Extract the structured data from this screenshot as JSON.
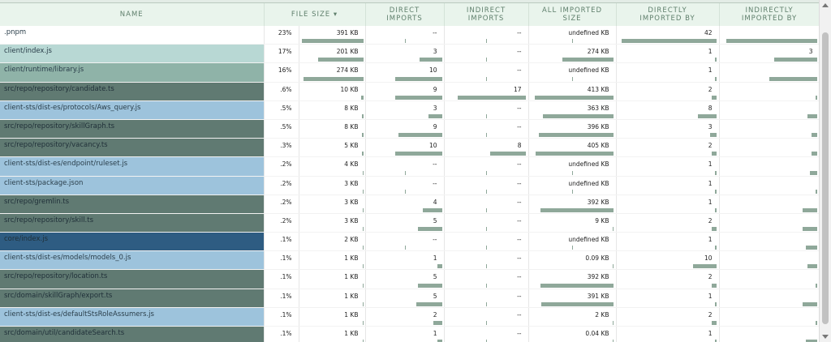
{
  "headers": {
    "name": "NAME",
    "file_size": "FILE SIZE",
    "sort_arrow": "▾",
    "direct_imports_1": "DIRECT",
    "direct_imports_2": "IMPORTS",
    "indirect_imports_1": "INDIRECT",
    "indirect_imports_2": "IMPORTS",
    "all_imported_1": "ALL IMPORTED",
    "all_imported_2": "SIZE",
    "directly_imported_by_1": "DIRECTLY",
    "directly_imported_by_2": "IMPORTED BY",
    "indirectly_imported_by_1": "INDIRECTLY",
    "indirectly_imported_by_2": "IMPORTED BY"
  },
  "rows": [
    {
      "name": ".pnpm",
      "color": "#ffffff",
      "pct": "23%",
      "size": "391 KB",
      "direct": "--",
      "indirect": "--",
      "all": "undefined KB",
      "dib": "42",
      "iib": ""
    },
    {
      "name": "client/index.js",
      "color": "#b8d8d4",
      "pct": "17%",
      "size": "201 KB",
      "direct": "3",
      "indirect": "--",
      "all": "274 KB",
      "dib": "1",
      "iib": "3"
    },
    {
      "name": "client/runtime/library.js",
      "color": "#8fb3a8",
      "pct": "16%",
      "size": "274 KB",
      "direct": "10",
      "indirect": "--",
      "all": "undefined KB",
      "dib": "1",
      "iib": ""
    },
    {
      "name": "src/repo/repository/candidate.ts",
      "color": "#607a72",
      "pct": ".6%",
      "size": "10 KB",
      "direct": "9",
      "indirect": "17",
      "all": "413 KB",
      "dib": "2",
      "iib": ""
    },
    {
      "name": "client-sts/dist-es/protocols/Aws_query.js",
      "color": "#9dc3dc",
      "pct": ".5%",
      "size": "8 KB",
      "direct": "3",
      "indirect": "--",
      "all": "363 KB",
      "dib": "8",
      "iib": ""
    },
    {
      "name": "src/repo/repository/skillGraph.ts",
      "color": "#607a72",
      "pct": ".5%",
      "size": "8 KB",
      "direct": "9",
      "indirect": "--",
      "all": "396 KB",
      "dib": "3",
      "iib": ""
    },
    {
      "name": "src/repo/repository/vacancy.ts",
      "color": "#607a72",
      "pct": ".3%",
      "size": "5 KB",
      "direct": "10",
      "indirect": "8",
      "all": "405 KB",
      "dib": "2",
      "iib": ""
    },
    {
      "name": "client-sts/dist-es/endpoint/ruleset.js",
      "color": "#9dc3dc",
      "pct": ".2%",
      "size": "4 KB",
      "direct": "--",
      "indirect": "--",
      "all": "undefined KB",
      "dib": "1",
      "iib": ""
    },
    {
      "name": "client-sts/package.json",
      "color": "#9dc3dc",
      "pct": ".2%",
      "size": "3 KB",
      "direct": "--",
      "indirect": "--",
      "all": "undefined KB",
      "dib": "1",
      "iib": ""
    },
    {
      "name": "src/repo/gremlin.ts",
      "color": "#607a72",
      "pct": ".2%",
      "size": "3 KB",
      "direct": "4",
      "indirect": "--",
      "all": "392 KB",
      "dib": "1",
      "iib": ""
    },
    {
      "name": "src/repo/repository/skill.ts",
      "color": "#607a72",
      "pct": ".2%",
      "size": "3 KB",
      "direct": "5",
      "indirect": "--",
      "all": "9 KB",
      "dib": "2",
      "iib": ""
    },
    {
      "name": "core/index.js",
      "color": "#2e5c82",
      "pct": ".1%",
      "size": "2 KB",
      "direct": "--",
      "indirect": "--",
      "all": "undefined KB",
      "dib": "1",
      "iib": ""
    },
    {
      "name": "client-sts/dist-es/models/models_0.js",
      "color": "#9dc3dc",
      "pct": ".1%",
      "size": "1 KB",
      "direct": "1",
      "indirect": "--",
      "all": "0.09 KB",
      "dib": "10",
      "iib": ""
    },
    {
      "name": "src/repo/repository/location.ts",
      "color": "#607a72",
      "pct": ".1%",
      "size": "1 KB",
      "direct": "5",
      "indirect": "--",
      "all": "392 KB",
      "dib": "2",
      "iib": ""
    },
    {
      "name": "src/domain/skillGraph/export.ts",
      "color": "#607a72",
      "pct": ".1%",
      "size": "1 KB",
      "direct": "5",
      "indirect": "--",
      "all": "391 KB",
      "dib": "1",
      "iib": ""
    },
    {
      "name": "client-sts/dist-es/defaultStsRoleAssumers.js",
      "color": "#9dc3dc",
      "pct": ".1%",
      "size": "1 KB",
      "direct": "2",
      "indirect": "--",
      "all": "2 KB",
      "dib": "2",
      "iib": ""
    },
    {
      "name": "src/domain/util/candidateSearch.ts",
      "color": "#607a72",
      "pct": ".1%",
      "size": "1 KB",
      "direct": "1",
      "indirect": "--",
      "all": "0.04 KB",
      "dib": "1",
      "iib": ""
    }
  ],
  "bars": {
    "size": [
      0.98,
      0.72,
      0.95,
      0.04,
      0.03,
      0.03,
      0.02,
      0.015,
      0.012,
      0.012,
      0.012,
      0.008,
      0.004,
      0.004,
      0.004,
      0.004,
      0.004
    ],
    "direct": [
      0,
      0.3,
      0.62,
      0.62,
      0.18,
      0.58,
      0.62,
      0,
      0,
      0.26,
      0.32,
      0,
      0.06,
      0.32,
      0.34,
      0.12,
      0.06
    ],
    "indirect": [
      0,
      0,
      0,
      0.85,
      0,
      0,
      0.45,
      0,
      0,
      0,
      0,
      0,
      0,
      0,
      0,
      0,
      0
    ],
    "all": [
      0,
      0.62,
      0,
      0.95,
      0.85,
      0.9,
      0.94,
      0,
      0,
      0.88,
      0.01,
      0,
      0.01,
      0.88,
      0.87,
      0.01,
      0.01
    ],
    "dib": [
      0.97,
      0.02,
      0.02,
      0.05,
      0.19,
      0.07,
      0.05,
      0.02,
      0.02,
      0.02,
      0.05,
      0.02,
      0.24,
      0.05,
      0.02,
      0.05,
      0.02
    ],
    "iib": [
      0.95,
      0.45,
      0.5,
      0.02,
      0.1,
      0.06,
      0.06,
      0.08,
      0.02,
      0.15,
      0.15,
      0.12,
      0.1,
      0.02,
      0.15,
      0.02,
      0.12
    ]
  }
}
